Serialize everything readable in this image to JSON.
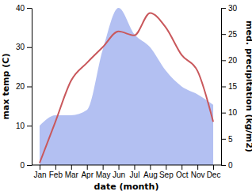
{
  "chart_data": {
    "type": "line",
    "x_label": "date (month)",
    "y_label": "max temp (C)",
    "y2_label": "med. precipitation (kg/m2)",
    "categories": [
      "Jan",
      "Feb",
      "Mar",
      "Apr",
      "May",
      "Jun",
      "Jul",
      "Aug",
      "Sep",
      "Oct",
      "Nov",
      "Dec"
    ],
    "series": [
      {
        "type": "area",
        "axis": "y2",
        "color": "#b3c0f2",
        "values": [
          7.5,
          9.5,
          9.5,
          10.5,
          22,
          30,
          25,
          22.5,
          18,
          15,
          13.5,
          11.5
        ]
      },
      {
        "type": "line",
        "color": "#c9585c",
        "values": [
          0.5,
          11,
          21.5,
          26,
          30,
          34,
          33,
          38.7,
          35,
          28,
          24,
          11
        ]
      }
    ],
    "ylim": [
      0,
      40
    ],
    "yticks": [
      0,
      10,
      20,
      30,
      40
    ],
    "y2lim": [
      0,
      30
    ],
    "y2ticks": [
      0,
      5,
      10,
      15,
      20,
      25,
      30
    ],
    "grid": false
  }
}
